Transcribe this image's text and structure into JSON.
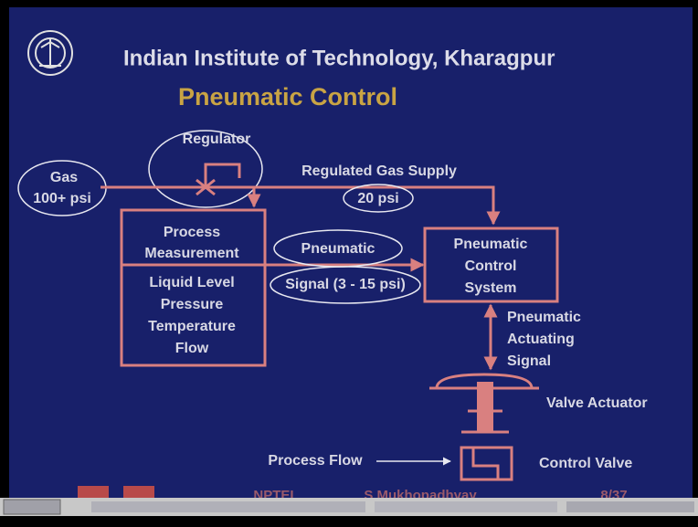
{
  "header": {
    "title": "Indian Institute of Technology, Kharagpur",
    "subtitle": "Pneumatic Control"
  },
  "diagram": {
    "regulator": "Regulator",
    "gas": [
      "Gas",
      "100+ psi"
    ],
    "supply": "Regulated Gas Supply",
    "supply_pressure": "20 psi",
    "measurement": [
      "Process",
      "Measurement"
    ],
    "variables": [
      "Liquid Level",
      "Pressure",
      "Temperature",
      "Flow"
    ],
    "signal": [
      "Pneumatic",
      "Signal (3 - 15 psi)"
    ],
    "controller": [
      "Pneumatic",
      "Control",
      "System"
    ],
    "actuating": [
      "Pneumatic",
      "Actuating",
      "Signal"
    ],
    "actuator": "Valve Actuator",
    "flow": "Process Flow",
    "valve": "Control Valve"
  },
  "footer": {
    "org": "NPTEL",
    "author": "S Mukhopadhyay",
    "page": "8/37"
  }
}
